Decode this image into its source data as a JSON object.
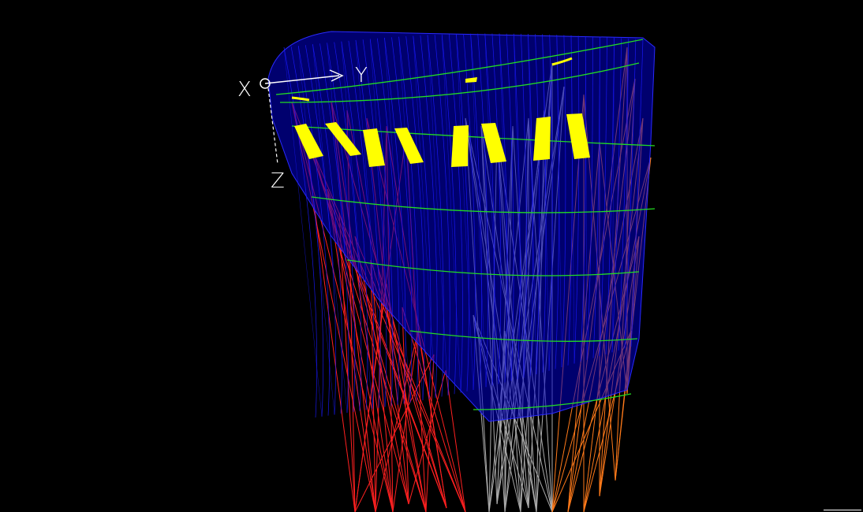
{
  "axes": {
    "x_label": "X",
    "y_label": "Y",
    "z_label": "Z",
    "color": "#ffffff"
  },
  "colors": {
    "background": "#000000",
    "canopy_mesh": "#1a1aff",
    "spanwise_ribs": "#22dd22",
    "cell_openings": "#ffff00",
    "lines_left": "#ff2020",
    "lines_center": "#aaaaaa",
    "lines_right": "#ff7a1a"
  },
  "model": {
    "mesh_density": 50,
    "rib_count": 6,
    "cell_opening_count": 9
  }
}
